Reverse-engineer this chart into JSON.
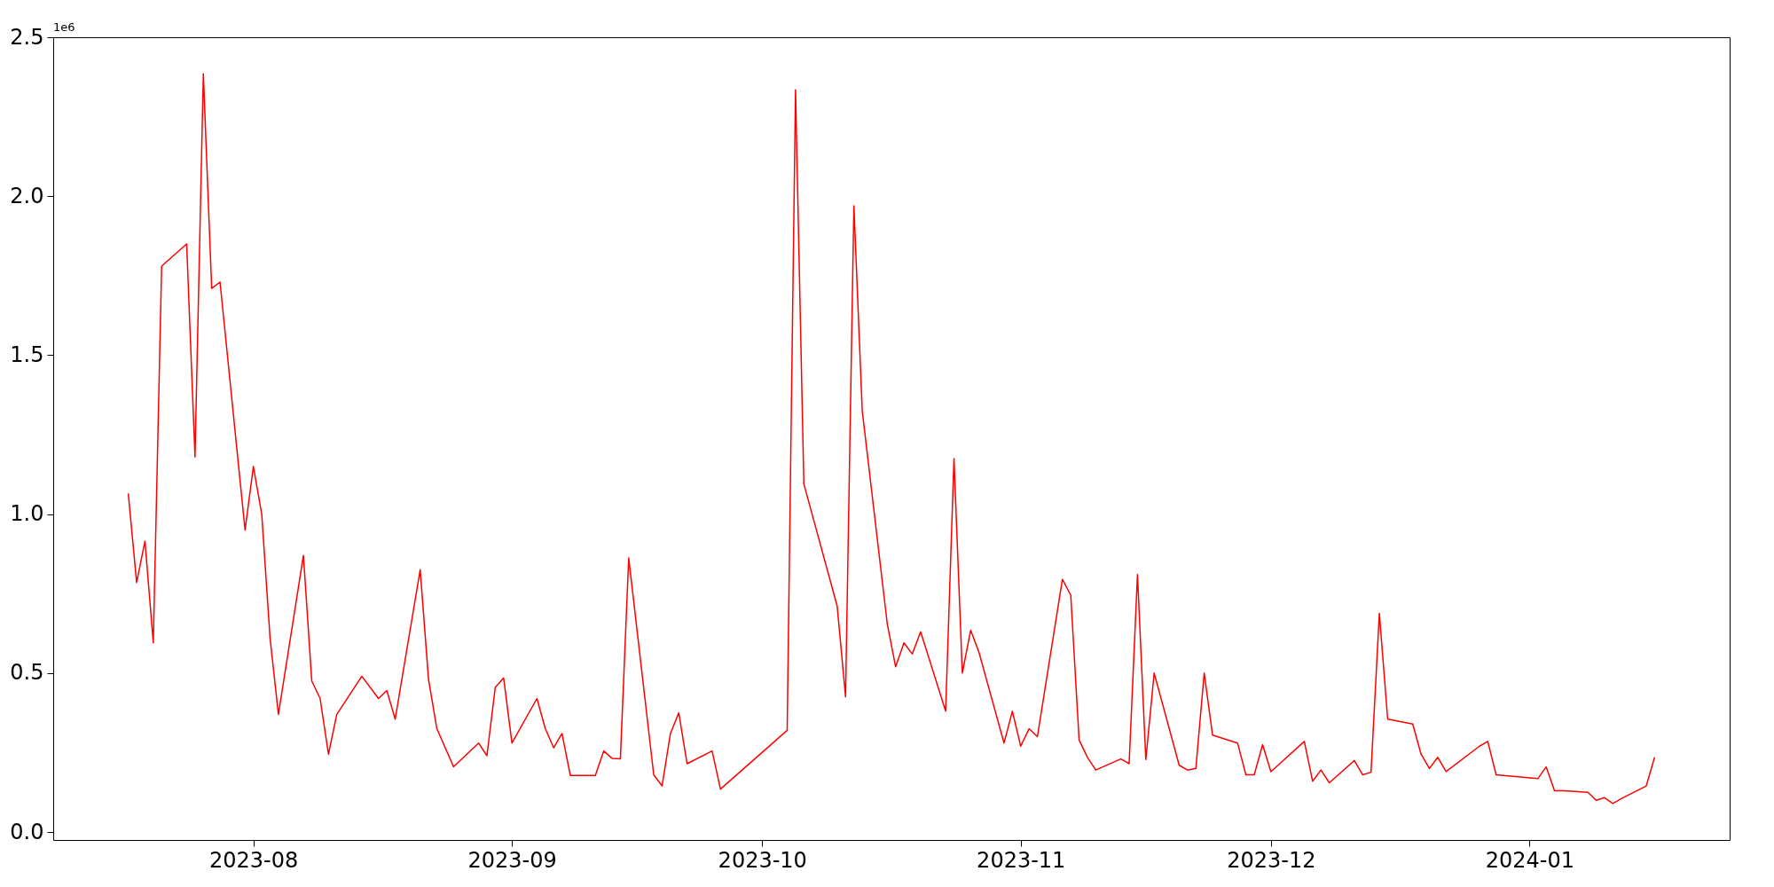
{
  "chart_data": {
    "type": "line",
    "x": [
      "2023-07-17",
      "2023-07-18",
      "2023-07-19",
      "2023-07-20",
      "2023-07-21",
      "2023-07-24",
      "2023-07-25",
      "2023-07-26",
      "2023-07-27",
      "2023-07-28",
      "2023-07-31",
      "2023-08-01",
      "2023-08-02",
      "2023-08-03",
      "2023-08-04",
      "2023-08-07",
      "2023-08-08",
      "2023-08-09",
      "2023-08-10",
      "2023-08-11",
      "2023-08-14",
      "2023-08-16",
      "2023-08-17",
      "2023-08-18",
      "2023-08-21",
      "2023-08-22",
      "2023-08-23",
      "2023-08-25",
      "2023-08-28",
      "2023-08-29",
      "2023-08-30",
      "2023-08-31",
      "2023-09-01",
      "2023-09-04",
      "2023-09-05",
      "2023-09-06",
      "2023-09-07",
      "2023-09-08",
      "2023-09-11",
      "2023-09-12",
      "2023-09-13",
      "2023-09-14",
      "2023-09-15",
      "2023-09-18",
      "2023-09-19",
      "2023-09-20",
      "2023-09-21",
      "2023-09-22",
      "2023-09-25",
      "2023-09-26",
      "2023-10-04",
      "2023-10-05",
      "2023-10-06",
      "2023-10-10",
      "2023-10-11",
      "2023-10-12",
      "2023-10-13",
      "2023-10-16",
      "2023-10-17",
      "2023-10-18",
      "2023-10-19",
      "2023-10-20",
      "2023-10-23",
      "2023-10-24",
      "2023-10-25",
      "2023-10-26",
      "2023-10-27",
      "2023-10-30",
      "2023-10-31",
      "2023-11-01",
      "2023-11-02",
      "2023-11-03",
      "2023-11-06",
      "2023-11-07",
      "2023-11-08",
      "2023-11-09",
      "2023-11-10",
      "2023-11-13",
      "2023-11-14",
      "2023-11-15",
      "2023-11-16",
      "2023-11-17",
      "2023-11-20",
      "2023-11-21",
      "2023-11-22",
      "2023-11-23",
      "2023-11-24",
      "2023-11-27",
      "2023-11-28",
      "2023-11-29",
      "2023-11-30",
      "2023-12-01",
      "2023-12-05",
      "2023-12-06",
      "2023-12-07",
      "2023-12-08",
      "2023-12-11",
      "2023-12-12",
      "2023-12-13",
      "2023-12-14",
      "2023-12-15",
      "2023-12-18",
      "2023-12-19",
      "2023-12-20",
      "2023-12-21",
      "2023-12-22",
      "2023-12-26",
      "2023-12-27",
      "2023-12-28",
      "2024-01-02",
      "2024-01-03",
      "2024-01-04",
      "2024-01-05",
      "2024-01-08",
      "2024-01-09",
      "2024-01-10",
      "2024-01-11",
      "2024-01-12",
      "2024-01-15",
      "2024-01-16"
    ],
    "series": [
      {
        "color": "#ff0000",
        "values": [
          1.065,
          0.785,
          0.915,
          0.595,
          1.78,
          1.85,
          1.18,
          2.385,
          1.71,
          1.73,
          0.95,
          1.15,
          1.0,
          0.61,
          0.37,
          0.87,
          0.475,
          0.42,
          0.245,
          0.37,
          0.49,
          0.42,
          0.445,
          0.355,
          0.825,
          0.48,
          0.325,
          0.205,
          0.28,
          0.24,
          0.455,
          0.485,
          0.28,
          0.42,
          0.325,
          0.265,
          0.31,
          0.178,
          0.178,
          0.255,
          0.232,
          0.23,
          0.862,
          0.18,
          0.145,
          0.31,
          0.375,
          0.215,
          0.255,
          0.135,
          0.32,
          2.335,
          1.095,
          0.71,
          0.425,
          1.97,
          1.325,
          0.655,
          0.52,
          0.595,
          0.56,
          0.63,
          0.38,
          1.175,
          0.5,
          0.635,
          0.565,
          0.28,
          0.38,
          0.27,
          0.325,
          0.3,
          0.795,
          0.745,
          0.29,
          0.235,
          0.195,
          0.23,
          0.215,
          0.81,
          0.228,
          0.5,
          0.21,
          0.195,
          0.2,
          0.5,
          0.305,
          0.28,
          0.18,
          0.18,
          0.275,
          0.19,
          0.285,
          0.16,
          0.195,
          0.155,
          0.225,
          0.18,
          0.188,
          0.688,
          0.355,
          0.34,
          0.245,
          0.2,
          0.235,
          0.19,
          0.27,
          0.285,
          0.18,
          0.168,
          0.205,
          0.13,
          0.13,
          0.125,
          0.1,
          0.108,
          0.09,
          0.105,
          0.145,
          0.235
        ]
      }
    ],
    "xlim": [
      "2023-07-08",
      "2024-01-25"
    ],
    "ylim": [
      -0.025,
      2.5
    ],
    "xticks": [
      {
        "value": "2023-08-01",
        "label": "2023-08"
      },
      {
        "value": "2023-09-01",
        "label": "2023-09"
      },
      {
        "value": "2023-10-01",
        "label": "2023-10"
      },
      {
        "value": "2023-11-01",
        "label": "2023-11"
      },
      {
        "value": "2023-12-01",
        "label": "2023-12"
      },
      {
        "value": "2024-01-01",
        "label": "2024-01"
      }
    ],
    "yticks": [
      {
        "value": 0,
        "label": "0.0"
      },
      0.5,
      {
        "value": 1,
        "label": "1.0"
      },
      1.5,
      {
        "value": 2,
        "label": "2.0"
      },
      2.5
    ],
    "grid": false,
    "annotations": [
      "1e6"
    ]
  }
}
